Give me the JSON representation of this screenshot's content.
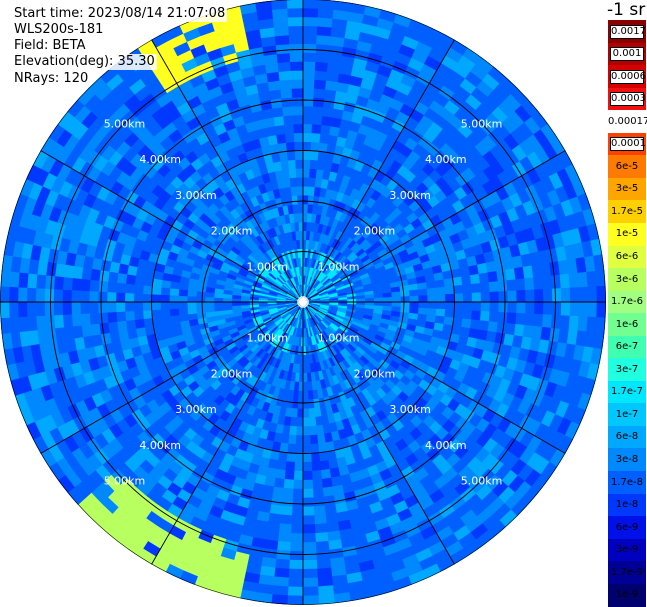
{
  "info": {
    "start_time": "Start time: 2023/08/14 21:07:08",
    "site": "WLS200s-181",
    "field": "Field: BETA",
    "elevation": "Elevation(deg): 35.30",
    "nrays": "NRays: 120"
  },
  "colorbar": {
    "title": "-1 sr",
    "bins": [
      {
        "label": "0.0017",
        "color": "#8b0000",
        "boxed": true
      },
      {
        "label": "0.001",
        "color": "#b00000",
        "boxed": true
      },
      {
        "label": "0.0006",
        "color": "#d40000",
        "boxed": true
      },
      {
        "label": "0.0003",
        "color": "#f01010",
        "boxed": true
      },
      {
        "label": "0.00017",
        "color": "#ffffff",
        "boxed": false
      },
      {
        "label": "0.0001",
        "color": "#ff4000",
        "boxed": true
      },
      {
        "label": "6e-5",
        "color": "#ff7a00",
        "boxed": false
      },
      {
        "label": "3e-5",
        "color": "#ffa500",
        "boxed": false
      },
      {
        "label": "1.7e-5",
        "color": "#ffd000",
        "boxed": false
      },
      {
        "label": "1e-5",
        "color": "#ffff20",
        "boxed": false
      },
      {
        "label": "6e-6",
        "color": "#e0ff40",
        "boxed": false
      },
      {
        "label": "3e-6",
        "color": "#b8ff60",
        "boxed": false
      },
      {
        "label": "1.7e-6",
        "color": "#a0ff80",
        "boxed": false
      },
      {
        "label": "1e-6",
        "color": "#70ff90",
        "boxed": false
      },
      {
        "label": "6e-7",
        "color": "#40ffb0",
        "boxed": false
      },
      {
        "label": "3e-7",
        "color": "#20ffe0",
        "boxed": false
      },
      {
        "label": "1.7e-7",
        "color": "#00e8ff",
        "boxed": false
      },
      {
        "label": "1e-7",
        "color": "#00c8ff",
        "boxed": false
      },
      {
        "label": "6e-8",
        "color": "#00a8ff",
        "boxed": false
      },
      {
        "label": "3e-8",
        "color": "#0088ff",
        "boxed": false
      },
      {
        "label": "1.7e-8",
        "color": "#0060ff",
        "boxed": false
      },
      {
        "label": "1e-8",
        "color": "#0038ff",
        "boxed": false
      },
      {
        "label": "6e-9",
        "color": "#0010e8",
        "boxed": false
      },
      {
        "label": "3e-9",
        "color": "#0000c0",
        "boxed": false
      },
      {
        "label": "1.7e-9",
        "color": "#000096",
        "boxed": false
      },
      {
        "label": "1e-9",
        "color": "#00006e",
        "boxed": false
      }
    ]
  },
  "chart_data": {
    "type": "heatmap",
    "projection": "polar-ppi",
    "field": "BETA",
    "range_max_km": 6.0,
    "range_rings_km": [
      1.0,
      2.0,
      3.0,
      4.0,
      5.0
    ],
    "ring_labels": [
      "1.00km",
      "2.00km",
      "3.00km",
      "4.00km",
      "5.00km"
    ],
    "azimuth_spokes_deg": [
      0,
      30,
      60,
      90,
      120,
      150,
      180,
      210,
      240,
      270,
      300,
      330
    ],
    "n_rays": 120,
    "grid": true,
    "background_level": "1.7e-8",
    "features": [
      {
        "note": "yellow-green returns near far range",
        "az_deg": [
          325,
          345
        ],
        "value": "1e-5"
      },
      {
        "note": "green-yellow patch at far range",
        "az_deg": [
          190,
          225
        ],
        "value": "3e-6"
      },
      {
        "note": "light-blue returns near radar",
        "range_km": [
          0,
          1.0
        ],
        "value": "1.7e-7"
      }
    ]
  }
}
